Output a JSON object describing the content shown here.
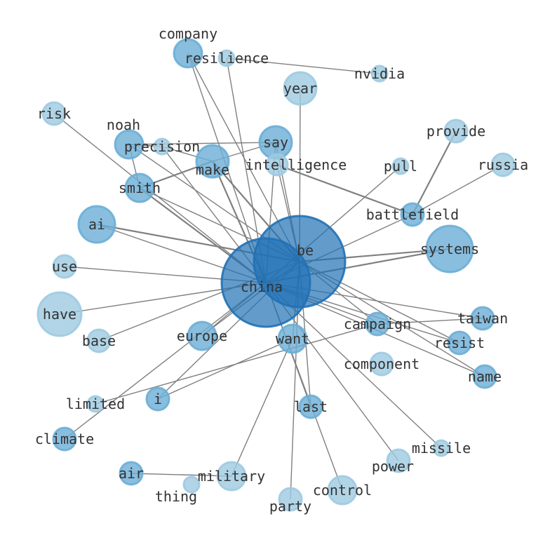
{
  "colors": {
    "edge": "#808080",
    "node_light": "#9ecae1",
    "node_mid": "#6baed6",
    "node_dark": "#2171b5",
    "label": "#333333"
  },
  "nodes": [
    "be",
    "china",
    "company",
    "resilience",
    "nvidia",
    "year",
    "risk",
    "provide",
    "russia",
    "noah",
    "precision",
    "say",
    "make",
    "intelligence",
    "pull",
    "smith",
    "battlefield",
    "ai",
    "systems",
    "use",
    "have",
    "base",
    "europe",
    "want",
    "campaign",
    "taiwan",
    "resist",
    "component",
    "name",
    "limited",
    "i",
    "last",
    "climate",
    "missile",
    "power",
    "air",
    "thing",
    "military",
    "control",
    "party"
  ],
  "edges": [
    [
      "company",
      "china"
    ],
    [
      "resilience",
      "nvidia"
    ],
    [
      "resilience",
      "china"
    ],
    [
      "year",
      "be"
    ],
    [
      "risk",
      "china"
    ],
    [
      "noah",
      "precision"
    ],
    [
      "noah",
      "say"
    ],
    [
      "noah",
      "smith"
    ],
    [
      "noah",
      "be"
    ],
    [
      "precision",
      "make"
    ],
    [
      "precision",
      "china"
    ],
    [
      "say",
      "make"
    ],
    [
      "say",
      "china"
    ],
    [
      "say",
      "be"
    ],
    [
      "intelligence",
      "be"
    ],
    [
      "make",
      "smith"
    ],
    [
      "make",
      "be"
    ],
    [
      "make",
      "china"
    ],
    [
      "smith",
      "china"
    ],
    [
      "smith",
      "be"
    ],
    [
      "pull",
      "china"
    ],
    [
      "battlefield",
      "provide"
    ],
    [
      "battlefield",
      "intelligence"
    ],
    [
      "battlefield",
      "russia"
    ],
    [
      "battlefield",
      "china"
    ],
    [
      "ai",
      "be"
    ],
    [
      "ai",
      "china"
    ],
    [
      "systems",
      "china"
    ],
    [
      "systems",
      "be"
    ],
    [
      "use",
      "china"
    ],
    [
      "have",
      "china"
    ],
    [
      "base",
      "be"
    ],
    [
      "europe",
      "be"
    ],
    [
      "europe",
      "china"
    ],
    [
      "climate",
      "china"
    ],
    [
      "limited",
      "campaign"
    ],
    [
      "i",
      "want"
    ],
    [
      "i",
      "be"
    ],
    [
      "want",
      "be"
    ],
    [
      "want",
      "military"
    ],
    [
      "campaign",
      "taiwan"
    ],
    [
      "campaign",
      "china"
    ],
    [
      "campaign",
      "be"
    ],
    [
      "taiwan",
      "china"
    ],
    [
      "resist",
      "be"
    ],
    [
      "resist",
      "china"
    ],
    [
      "name",
      "be"
    ],
    [
      "name",
      "china"
    ],
    [
      "last",
      "china"
    ],
    [
      "last",
      "be"
    ],
    [
      "missile",
      "china"
    ],
    [
      "power",
      "china"
    ],
    [
      "control",
      "china"
    ],
    [
      "party",
      "be"
    ],
    [
      "air",
      "military"
    ],
    [
      "company",
      "be"
    ]
  ]
}
